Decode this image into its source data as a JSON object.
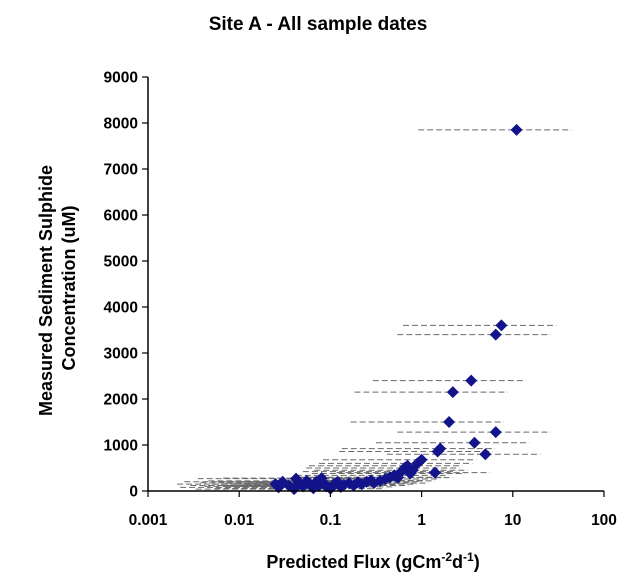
{
  "chart_data": {
    "type": "scatter",
    "title": "Site A - All sample dates",
    "xlabel_parts": [
      "Predicted Flux (gCm",
      "-2",
      "d",
      "-1",
      ")"
    ],
    "ylabel_lines": [
      "Measured Sediment Sulphide",
      "Concentration (uM)"
    ],
    "xscale": "log",
    "xlim": [
      0.001,
      100
    ],
    "ylim": [
      0,
      9000
    ],
    "x_ticks": [
      0.001,
      0.01,
      0.1,
      1,
      10,
      100
    ],
    "x_tick_labels": [
      "0.001",
      "0.01",
      "0.1",
      "1",
      "10",
      "100"
    ],
    "y_ticks": [
      0,
      1000,
      2000,
      3000,
      4000,
      5000,
      6000,
      7000,
      8000,
      9000
    ],
    "y_tick_labels": [
      "0",
      "1000",
      "2000",
      "3000",
      "4000",
      "5000",
      "6000",
      "7000",
      "8000",
      "9000"
    ],
    "grid": false,
    "marker_color": "#13138a",
    "errorbar_color": "#6a6a6a",
    "errorbar_style": "dashed horizontal, lower bound about x/12, upper bound about x*4",
    "points": [
      {
        "x": 0.025,
        "y": 150
      },
      {
        "x": 0.027,
        "y": 80
      },
      {
        "x": 0.03,
        "y": 200
      },
      {
        "x": 0.035,
        "y": 120
      },
      {
        "x": 0.04,
        "y": 40
      },
      {
        "x": 0.042,
        "y": 270
      },
      {
        "x": 0.045,
        "y": 180
      },
      {
        "x": 0.05,
        "y": 100
      },
      {
        "x": 0.055,
        "y": 220
      },
      {
        "x": 0.06,
        "y": 150
      },
      {
        "x": 0.065,
        "y": 60
      },
      {
        "x": 0.07,
        "y": 200
      },
      {
        "x": 0.075,
        "y": 120
      },
      {
        "x": 0.08,
        "y": 280
      },
      {
        "x": 0.085,
        "y": 170
      },
      {
        "x": 0.09,
        "y": 100
      },
      {
        "x": 0.1,
        "y": 50
      },
      {
        "x": 0.11,
        "y": 150
      },
      {
        "x": 0.12,
        "y": 200
      },
      {
        "x": 0.13,
        "y": 90
      },
      {
        "x": 0.14,
        "y": 130
      },
      {
        "x": 0.16,
        "y": 170
      },
      {
        "x": 0.18,
        "y": 120
      },
      {
        "x": 0.2,
        "y": 190
      },
      {
        "x": 0.22,
        "y": 150
      },
      {
        "x": 0.25,
        "y": 200
      },
      {
        "x": 0.28,
        "y": 230
      },
      {
        "x": 0.3,
        "y": 170
      },
      {
        "x": 0.35,
        "y": 220
      },
      {
        "x": 0.4,
        "y": 260
      },
      {
        "x": 0.45,
        "y": 300
      },
      {
        "x": 0.5,
        "y": 340
      },
      {
        "x": 0.55,
        "y": 290
      },
      {
        "x": 0.6,
        "y": 420
      },
      {
        "x": 0.65,
        "y": 500
      },
      {
        "x": 0.7,
        "y": 550
      },
      {
        "x": 0.75,
        "y": 380
      },
      {
        "x": 0.8,
        "y": 450
      },
      {
        "x": 0.9,
        "y": 600
      },
      {
        "x": 1.0,
        "y": 680
      },
      {
        "x": 1.4,
        "y": 400
      },
      {
        "x": 1.5,
        "y": 860
      },
      {
        "x": 1.6,
        "y": 920
      },
      {
        "x": 2.0,
        "y": 1500
      },
      {
        "x": 2.2,
        "y": 2150
      },
      {
        "x": 3.5,
        "y": 2400
      },
      {
        "x": 3.8,
        "y": 1050
      },
      {
        "x": 5.0,
        "y": 800
      },
      {
        "x": 6.5,
        "y": 1280
      },
      {
        "x": 6.5,
        "y": 3400
      },
      {
        "x": 7.5,
        "y": 3600
      },
      {
        "x": 11,
        "y": 7850
      }
    ]
  }
}
